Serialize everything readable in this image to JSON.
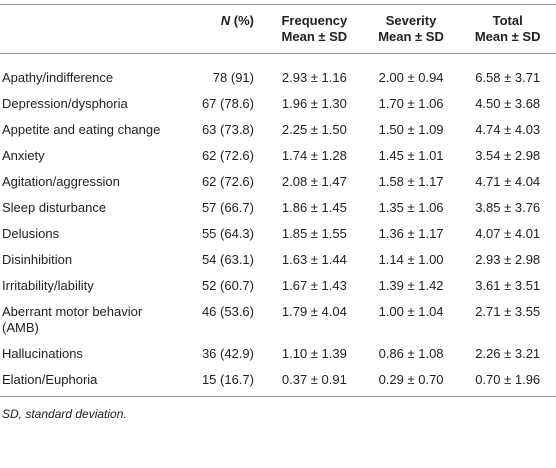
{
  "table": {
    "columns": [
      {
        "em": "N",
        "text": "(%)"
      },
      {
        "lines": [
          "Frequency",
          "Mean ± SD"
        ]
      },
      {
        "lines": [
          "Severity",
          "Mean ± SD"
        ]
      },
      {
        "lines": [
          "Total",
          "Mean ± SD"
        ]
      }
    ],
    "rows": [
      [
        "Apathy/indifference",
        "78 (91)",
        "2.93 ± 1.16",
        "2.00 ± 0.94",
        "6.58 ± 3.71"
      ],
      [
        "Depression/dysphoria",
        "67 (78.6)",
        "1.96 ± 1.30",
        "1.70 ± 1.06",
        "4.50 ± 3.68"
      ],
      [
        "Appetite and eating change",
        "63 (73.8)",
        "2.25 ± 1.50",
        "1.50 ± 1.09",
        "4.74 ± 4.03"
      ],
      [
        "Anxiety",
        "62 (72.6)",
        "1.74 ± 1.28",
        "1.45 ± 1.01",
        "3.54 ± 2.98"
      ],
      [
        "Agitation/aggression",
        "62 (72.6)",
        "2.08 ± 1.47",
        "1.58 ± 1.17",
        "4.71 ± 4.04"
      ],
      [
        "Sleep disturbance",
        "57 (66.7)",
        "1.86 ± 1.45",
        "1.35 ± 1.06",
        "3.85 ± 3.76"
      ],
      [
        "Delusions",
        "55 (64.3)",
        "1.85 ± 1.55",
        "1.36 ± 1.17",
        "4.07 ± 4.01"
      ],
      [
        "Disinhibition",
        "54 (63.1)",
        "1.63 ± 1.44",
        "1.14 ± 1.00",
        "2.93 ± 2.98"
      ],
      [
        "Irritability/lability",
        "52 (60.7)",
        "1.67 ± 1.43",
        "1.39 ± 1.42",
        "3.61 ± 3.51"
      ],
      [
        "Aberrant motor behavior (AMB)",
        "46 (53.6)",
        "1.79 ± 4.04",
        "1.00 ± 1.04",
        "2.71 ± 3.55"
      ],
      [
        "Hallucinations",
        "36 (42.9)",
        "1.10 ± 1.39",
        "0.86 ± 1.08",
        "2.26 ± 3.21"
      ],
      [
        "Elation/Euphoria",
        "15 (16.7)",
        "0.37 ± 0.91",
        "0.29 ± 0.70",
        "0.70 ± 1.96"
      ]
    ],
    "footnote": "SD, standard deviation."
  }
}
